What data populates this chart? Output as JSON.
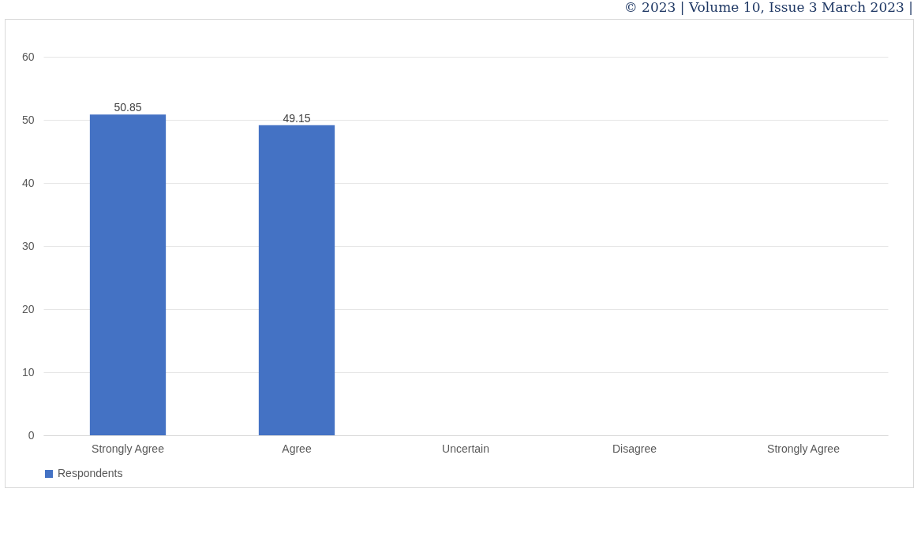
{
  "chart_data": {
    "type": "bar",
    "categories": [
      "Strongly Agree",
      "Agree",
      "Uncertain",
      "Disagree",
      "Strongly Agree"
    ],
    "series": [
      {
        "name": "Respondents",
        "color": "#4472c4",
        "values": [
          50.85,
          49.15,
          0,
          0,
          0
        ],
        "value_labels": [
          "50.85",
          "49.15",
          null,
          null,
          null
        ]
      }
    ],
    "ylim": [
      0,
      60
    ],
    "yticks": [
      0,
      10,
      20,
      30,
      40,
      50,
      60
    ],
    "grid": "y",
    "legend": "bottom",
    "annotations": [
      "© 2023 | Volume 10, Issue 3 March 2023 |"
    ]
  }
}
